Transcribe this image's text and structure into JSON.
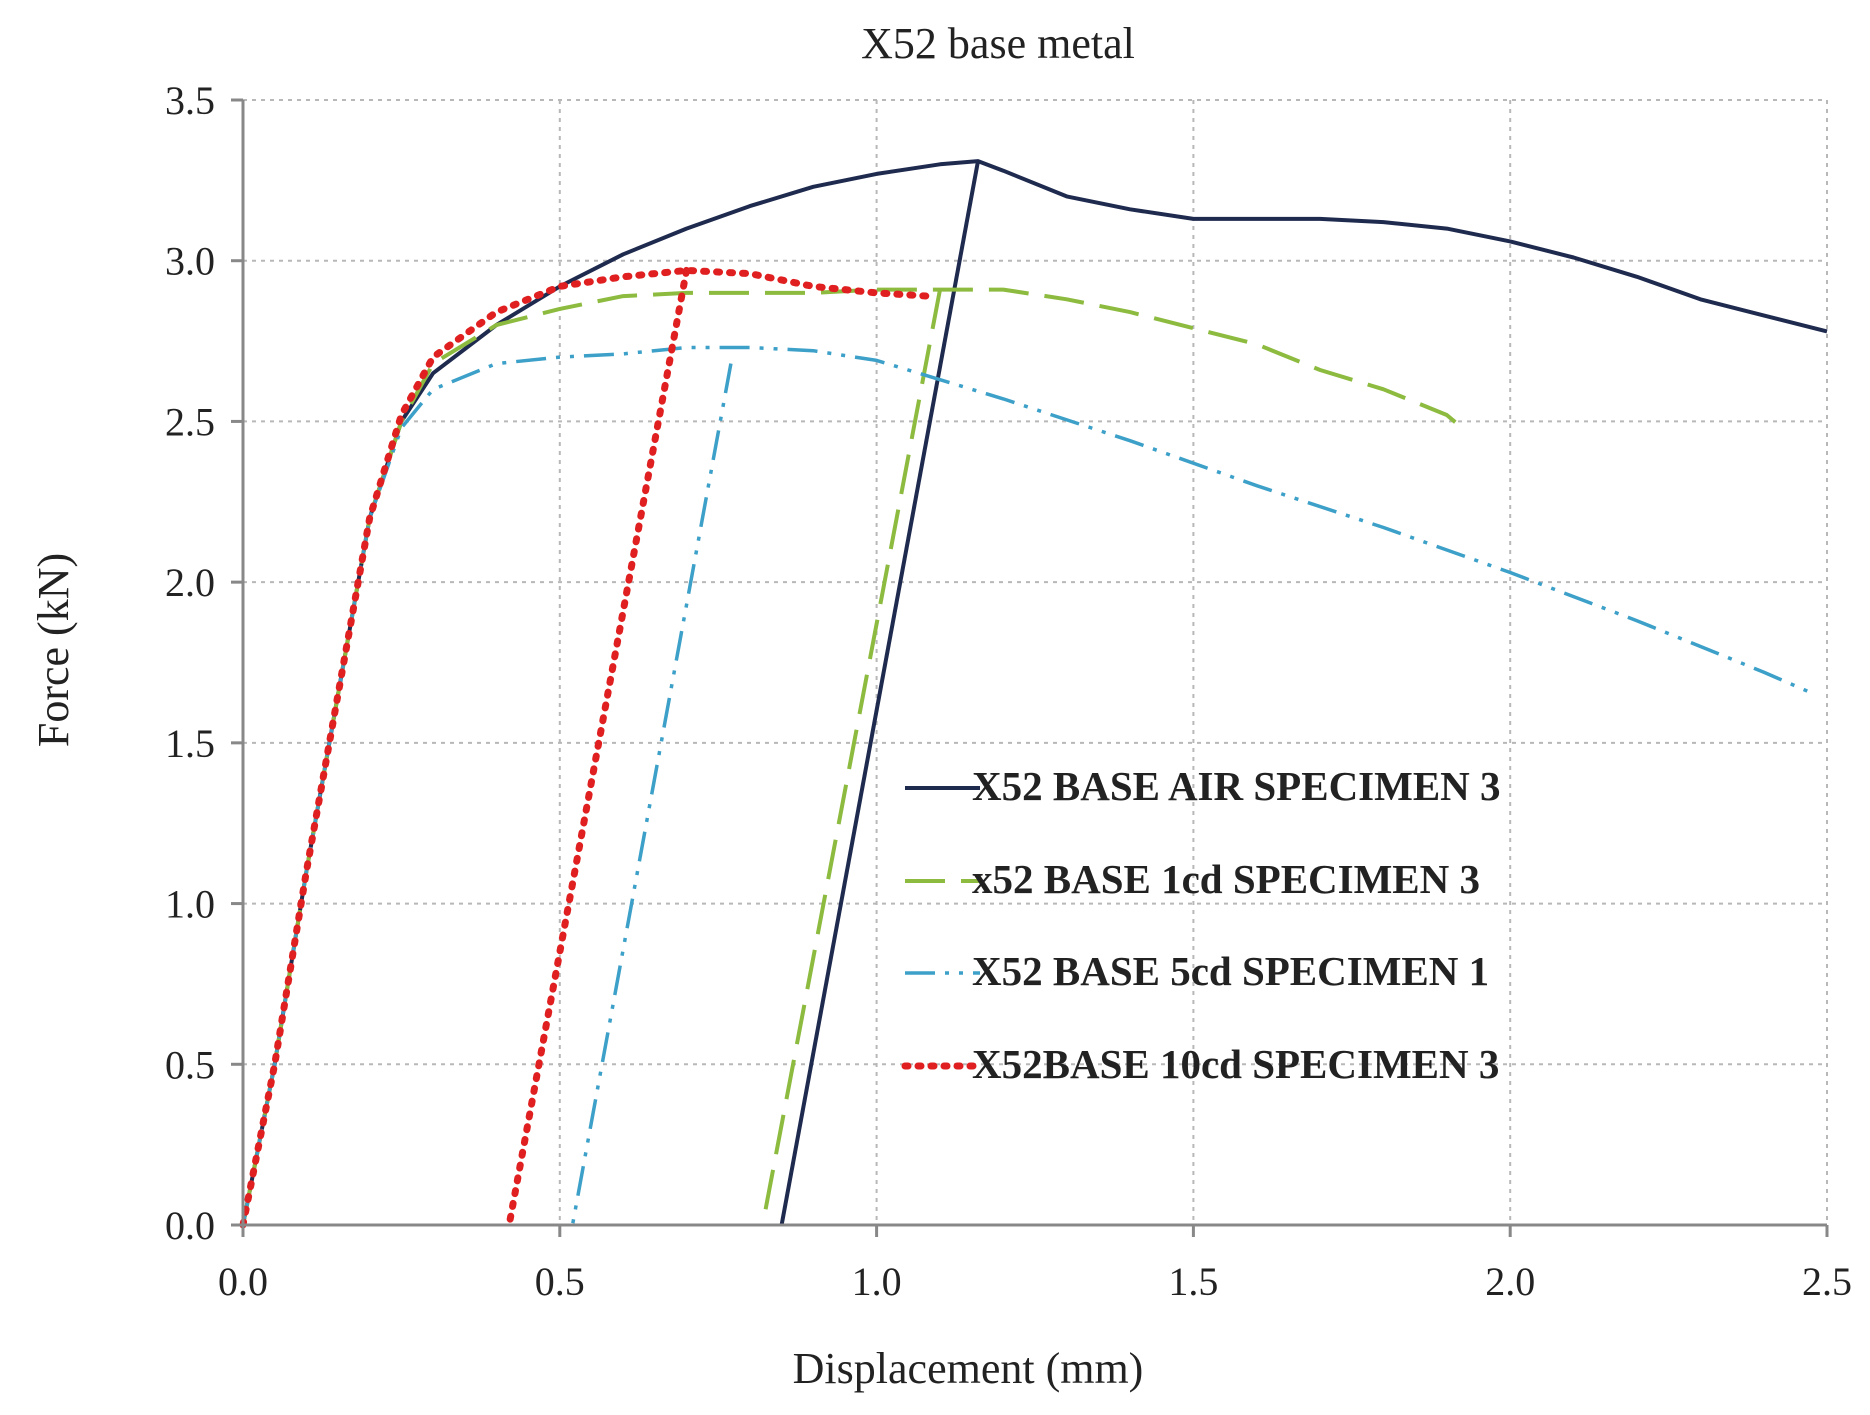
{
  "chart_data": {
    "type": "line",
    "title": "X52 base metal",
    "xlabel": "Displacement (mm)",
    "ylabel": "Force (kN)",
    "xlim": [
      0,
      2.5
    ],
    "ylim": [
      0,
      3.5
    ],
    "xticks": [
      0.0,
      0.5,
      1.0,
      1.5,
      2.0,
      2.5
    ],
    "yticks": [
      0.0,
      0.5,
      1.0,
      1.5,
      2.0,
      2.5,
      3.0,
      3.5
    ],
    "xtick_labels": [
      "0.0",
      "0.5",
      "1.0",
      "1.5",
      "2.0",
      "2.5"
    ],
    "ytick_labels": [
      "0.0",
      "0.5",
      "1.0",
      "1.5",
      "2.0",
      "2.5",
      "3.0",
      "3.5"
    ],
    "grid": true,
    "legend_position": "center-right",
    "series": [
      {
        "name": "X52 BASE AIR SPECIMEN 3",
        "color": "#1f2a4f",
        "dash": "solid",
        "x": [
          0.0,
          0.05,
          0.1,
          0.15,
          0.2,
          0.25,
          0.3,
          0.4,
          0.5,
          0.6,
          0.7,
          0.8,
          0.9,
          1.0,
          1.1,
          1.16,
          1.2,
          1.3,
          1.4,
          1.5,
          1.6,
          1.7,
          1.8,
          1.9,
          2.0,
          2.1,
          2.2,
          2.3,
          2.4,
          2.5
        ],
        "y": [
          0.0,
          0.5,
          1.1,
          1.65,
          2.2,
          2.5,
          2.65,
          2.8,
          2.92,
          3.02,
          3.1,
          3.17,
          3.23,
          3.27,
          3.3,
          3.31,
          3.28,
          3.2,
          3.16,
          3.13,
          3.13,
          3.13,
          3.12,
          3.1,
          3.06,
          3.01,
          2.95,
          2.88,
          2.83,
          2.78
        ],
        "unload_x": [
          1.16,
          0.85
        ],
        "unload_y": [
          3.31,
          0.0
        ]
      },
      {
        "name": "x52 BASE 1cd SPECIMEN 3",
        "color": "#8dbb3f",
        "dash": "dashed",
        "x": [
          0.0,
          0.05,
          0.1,
          0.15,
          0.2,
          0.25,
          0.3,
          0.4,
          0.5,
          0.6,
          0.7,
          0.8,
          0.9,
          1.0,
          1.1,
          1.2,
          1.3,
          1.4,
          1.5,
          1.6,
          1.7,
          1.8,
          1.9,
          1.93
        ],
        "y": [
          0.0,
          0.5,
          1.1,
          1.65,
          2.2,
          2.5,
          2.68,
          2.8,
          2.85,
          2.89,
          2.9,
          2.9,
          2.9,
          2.91,
          2.91,
          2.91,
          2.88,
          2.84,
          2.79,
          2.74,
          2.66,
          2.6,
          2.52,
          2.47
        ],
        "unload_x": [
          1.1,
          0.82
        ],
        "unload_y": [
          2.91,
          0.0
        ]
      },
      {
        "name": "X52 BASE 5cd SPECIMEN 1",
        "color": "#3ca0c8",
        "dash": "dashdotdot",
        "x": [
          0.0,
          0.05,
          0.1,
          0.15,
          0.2,
          0.25,
          0.3,
          0.4,
          0.5,
          0.6,
          0.7,
          0.8,
          0.9,
          1.0,
          1.2,
          1.4,
          1.6,
          1.8,
          2.0,
          2.2,
          2.4,
          2.47
        ],
        "y": [
          0.0,
          0.5,
          1.1,
          1.65,
          2.2,
          2.48,
          2.6,
          2.68,
          2.7,
          2.71,
          2.73,
          2.73,
          2.72,
          2.69,
          2.57,
          2.44,
          2.3,
          2.17,
          2.03,
          1.88,
          1.72,
          1.66
        ],
        "unload_x": [
          0.77,
          0.52
        ],
        "unload_y": [
          2.68,
          0.0
        ]
      },
      {
        "name": "X52BASE 10cd SPECIMEN 3",
        "color": "#e02020",
        "dash": "dotted",
        "x": [
          0.0,
          0.05,
          0.1,
          0.15,
          0.2,
          0.25,
          0.3,
          0.4,
          0.5,
          0.6,
          0.7,
          0.8,
          0.9,
          1.0,
          1.08
        ],
        "y": [
          0.0,
          0.5,
          1.1,
          1.65,
          2.2,
          2.52,
          2.7,
          2.84,
          2.92,
          2.95,
          2.97,
          2.96,
          2.92,
          2.9,
          2.89
        ],
        "unload_x": [
          0.7,
          0.42
        ],
        "unload_y": [
          2.97,
          0.0
        ]
      }
    ]
  }
}
